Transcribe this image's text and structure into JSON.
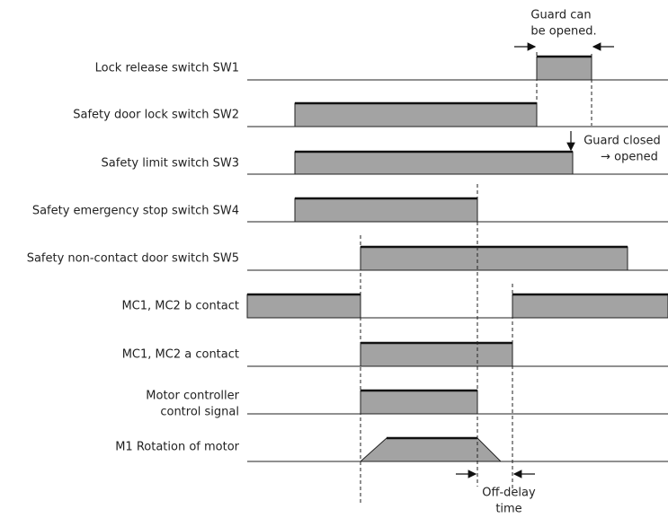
{
  "signals": [
    [
      "Lock release switch SW1"
    ],
    [
      "Safety door lock switch SW2"
    ],
    [
      "Safety limit switch SW3"
    ],
    [
      "Safety emergency stop switch SW4"
    ],
    [
      "Safety non-contact door switch SW5"
    ],
    [
      "MC1, MC2 b contact"
    ],
    [
      "MC1, MC2 a contact"
    ],
    [
      "Motor controller",
      "control signal"
    ],
    [
      "M1 Rotation of motor"
    ]
  ],
  "annotations": {
    "guard_open": [
      "Guard can",
      "be opened."
    ],
    "guard_closed": [
      "Guard closed",
      "→ opened"
    ],
    "off_delay": [
      "Off-delay",
      "time"
    ]
  }
}
